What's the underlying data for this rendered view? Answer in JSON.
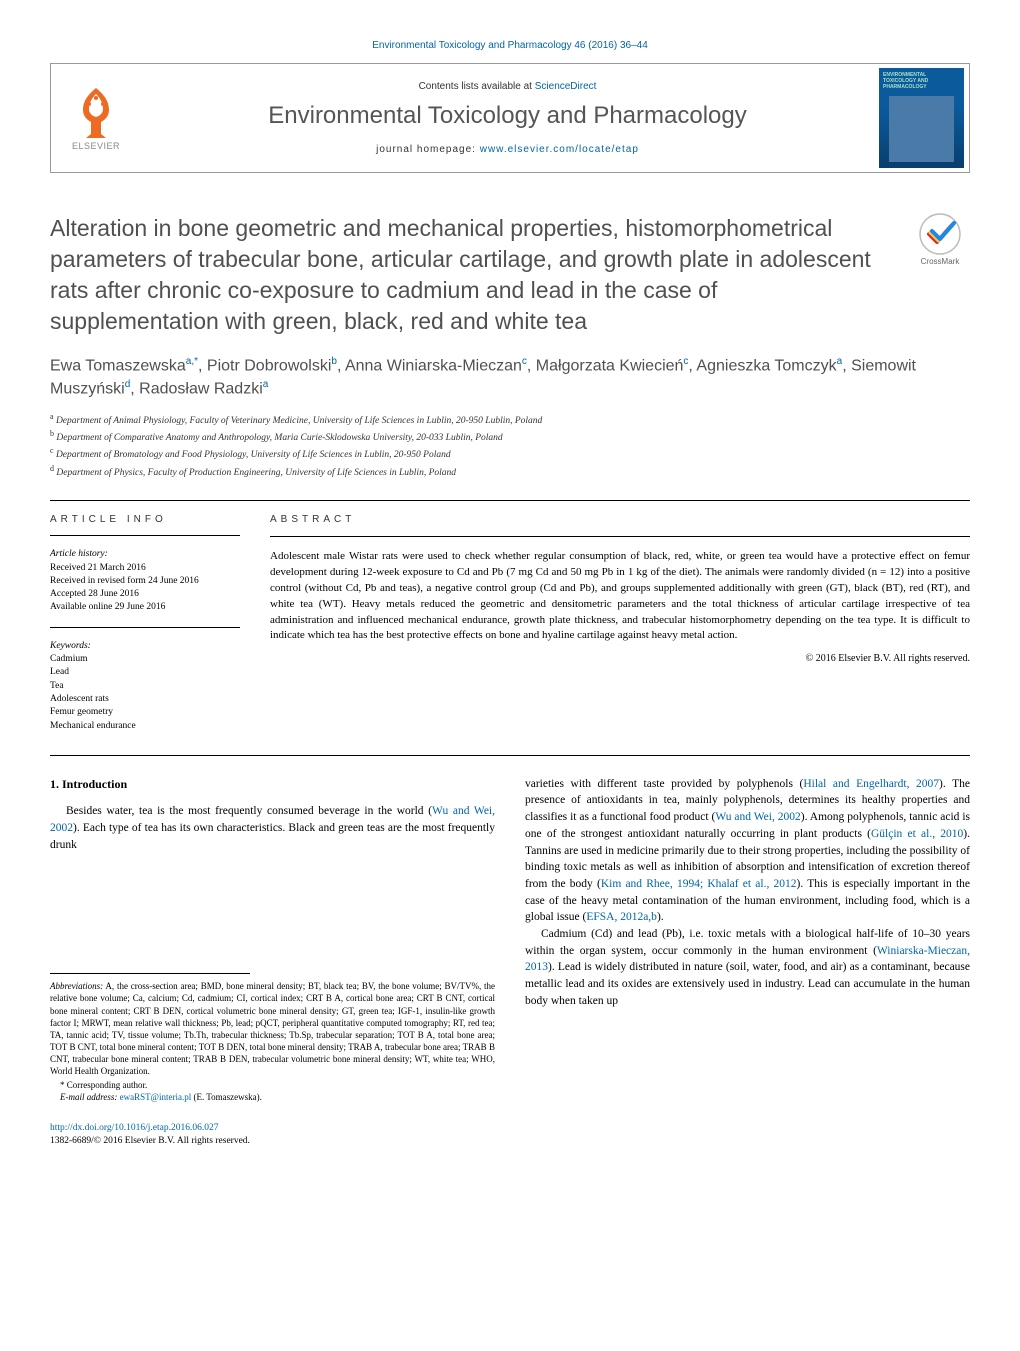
{
  "journal_link_top": "Environmental Toxicology and Pharmacology 46 (2016) 36–44",
  "header": {
    "elsevier_label": "ELSEVIER",
    "contents_prefix": "Contents lists available at ",
    "contents_link": "ScienceDirect",
    "journal_name": "Environmental Toxicology and Pharmacology",
    "homepage_prefix": "journal homepage: ",
    "homepage_url": "www.elsevier.com/locate/etap",
    "cover_title": "ENVIRONMENTAL TOXICOLOGY AND PHARMACOLOGY"
  },
  "crossmark_label": "CrossMark",
  "title": "Alteration in bone geometric and mechanical properties, histomorphometrical parameters of trabecular bone, articular cartilage, and growth plate in adolescent rats after chronic co-exposure to cadmium and lead in the case of supplementation with green, black, red and white tea",
  "authors_html": "Ewa Tomaszewska<sup>a,*</sup>, Piotr Dobrowolski<sup>b</sup>, Anna Winiarska-Mieczan<sup>c</sup>, Małgorzata Kwiecień<sup>c</sup>, Agnieszka Tomczyk<sup>a</sup>, Siemowit Muszyński<sup>d</sup>, Radosław Radzki<sup>a</sup>",
  "affiliations": [
    {
      "sup": "a",
      "text": "Department of Animal Physiology, Faculty of Veterinary Medicine, University of Life Sciences in Lublin, 20-950 Lublin, Poland"
    },
    {
      "sup": "b",
      "text": "Department of Comparative Anatomy and Anthropology, Maria Curie-Sklodowska University, 20-033 Lublin, Poland"
    },
    {
      "sup": "c",
      "text": "Department of Bromatology and Food Physiology, University of Life Sciences in Lublin, 20-950 Poland"
    },
    {
      "sup": "d",
      "text": "Department of Physics, Faculty of Production Engineering, University of Life Sciences in Lublin, Poland"
    }
  ],
  "article_info": {
    "heading": "article info",
    "history_label": "Article history:",
    "history": [
      "Received 21 March 2016",
      "Received in revised form 24 June 2016",
      "Accepted 28 June 2016",
      "Available online 29 June 2016"
    ],
    "keywords_label": "Keywords:",
    "keywords": [
      "Cadmium",
      "Lead",
      "Tea",
      "Adolescent rats",
      "Femur geometry",
      "Mechanical endurance"
    ]
  },
  "abstract": {
    "heading": "abstract",
    "text": "Adolescent male Wistar rats were used to check whether regular consumption of black, red, white, or green tea would have a protective effect on femur development during 12-week exposure to Cd and Pb (7 mg Cd and 50 mg Pb in 1 kg of the diet). The animals were randomly divided (n = 12) into a positive control (without Cd, Pb and teas), a negative control group (Cd and Pb), and groups supplemented additionally with green (GT), black (BT), red (RT), and white tea (WT). Heavy metals reduced the geometric and densitometric parameters and the total thickness of articular cartilage irrespective of tea administration and influenced mechanical endurance, growth plate thickness, and trabecular histomorphometry depending on the tea type. It is difficult to indicate which tea has the best protective effects on bone and hyaline cartilage against heavy metal action.",
    "copyright": "© 2016 Elsevier B.V. All rights reserved."
  },
  "body": {
    "section_heading": "1. Introduction",
    "left_p1": "Besides water, tea is the most frequently consumed beverage in the world (",
    "left_ref1": "Wu and Wei, 2002",
    "left_p1b": "). Each type of tea has its own characteristics. Black and green teas are the most frequently drunk",
    "right_p1a": "varieties with different taste provided by polyphenols (",
    "right_ref1": "Hilal and Engelhardt, 2007",
    "right_p1b": "). The presence of antioxidants in tea, mainly polyphenols, determines its healthy properties and classifies it as a functional food product (",
    "right_ref2": "Wu and Wei, 2002",
    "right_p1c": "). Among polyphenols, tannic acid is one of the strongest antioxidant naturally occurring in plant products (",
    "right_ref3": "Gülçin et al., 2010",
    "right_p1d": "). Tannins are used in medicine primarily due to their strong properties, including the possibility of binding toxic metals as well as inhibition of absorption and intensification of excretion thereof from the body (",
    "right_ref4": "Kim and Rhee, 1994; Khalaf et al., 2012",
    "right_p1e": "). This is especially important in the case of the heavy metal contamination of the human environment, including food, which is a global issue (",
    "right_ref5": "EFSA, 2012a,b",
    "right_p1f": ").",
    "right_p2a": "Cadmium (Cd) and lead (Pb), i.e. toxic metals with a biological half-life of 10–30 years within the organ system, occur commonly in the human environment (",
    "right_ref6": "Winiarska-Mieczan, 2013",
    "right_p2b": "). Lead is widely distributed in nature (soil, water, food, and air) as a contaminant, because metallic lead and its oxides are extensively used in industry. Lead can accumulate in the human body when taken up"
  },
  "footnotes": {
    "abbr_label": "Abbreviations:",
    "abbr_text": " A, the cross-section area; BMD, bone mineral density; BT, black tea; BV, the bone volume; BV/TV%, the relative bone volume; Ca, calcium; Cd, cadmium; CI, cortical index; CRT B A, cortical bone area; CRT B CNT, cortical bone mineral content; CRT B DEN, cortical volumetric bone mineral density; GT, green tea; IGF-1, insulin-like growth factor I; MRWT, mean relative wall thickness; Pb, lead; pQCT, peripheral quantitative computed tomography; RT, red tea; TA, tannic acid; TV, tissue volume; Tb.Th, trabecular thickness; Tb.Sp, trabecular separation; TOT B A, total bone area; TOT B CNT, total bone mineral content; TOT B DEN, total bone mineral density; TRAB A, trabecular bone area; TRAB B CNT, trabecular bone mineral content; TRAB B DEN, trabecular volumetric bone mineral density; WT, white tea; WHO, World Health Organization.",
    "corr_label": "* Corresponding author.",
    "email_label": "E-mail address: ",
    "email": "ewaRST@interia.pl",
    "email_suffix": " (E. Tomaszewska)."
  },
  "footer": {
    "doi": "http://dx.doi.org/10.1016/j.etap.2016.06.027",
    "issn_line": "1382-6689/© 2016 Elsevier B.V. All rights reserved."
  },
  "colors": {
    "link": "#0066a4",
    "elsevier_orange": "#ed6b23",
    "heading_gray": "#505050",
    "cover_blue": "#0a5a9c"
  }
}
